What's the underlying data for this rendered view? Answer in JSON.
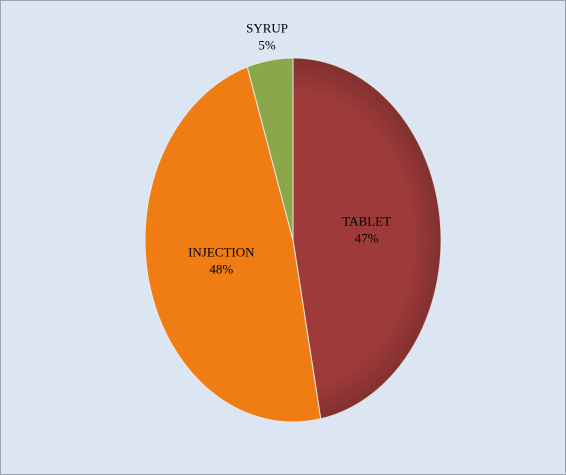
{
  "chart_data": {
    "type": "pie",
    "categories": [
      "TABLET",
      "INJECTION",
      "SYRUP"
    ],
    "values": [
      47,
      48,
      5
    ],
    "value_labels": [
      "47%",
      "48%",
      "5%"
    ],
    "colors": [
      "#9e3b3a",
      "#f07c14",
      "#8aa84a"
    ]
  }
}
